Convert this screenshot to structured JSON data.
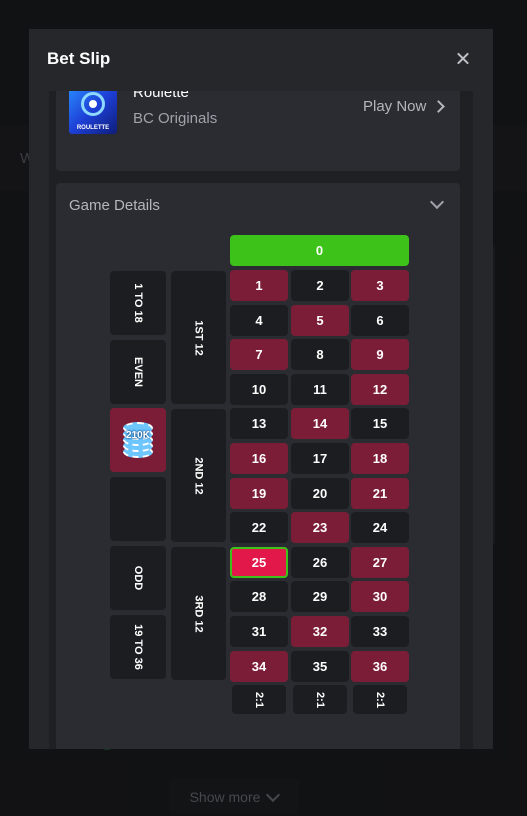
{
  "background": {
    "show_more_label": "Show more",
    "partial_letter": "W"
  },
  "modal": {
    "title": "Bet Slip",
    "game": {
      "name": "Roulette",
      "provider": "BC Originals",
      "thumb_label": "ROULETTE",
      "play_label": "Play Now"
    },
    "details_title": "Game Details"
  },
  "board": {
    "zero": "0",
    "rows": [
      [
        {
          "n": "1",
          "c": "red"
        },
        {
          "n": "2",
          "c": "black"
        },
        {
          "n": "3",
          "c": "red"
        }
      ],
      [
        {
          "n": "4",
          "c": "black"
        },
        {
          "n": "5",
          "c": "red"
        },
        {
          "n": "6",
          "c": "black"
        }
      ],
      [
        {
          "n": "7",
          "c": "red"
        },
        {
          "n": "8",
          "c": "black"
        },
        {
          "n": "9",
          "c": "red"
        }
      ],
      [
        {
          "n": "10",
          "c": "black"
        },
        {
          "n": "11",
          "c": "black"
        },
        {
          "n": "12",
          "c": "red"
        }
      ],
      [
        {
          "n": "13",
          "c": "black"
        },
        {
          "n": "14",
          "c": "red"
        },
        {
          "n": "15",
          "c": "black"
        }
      ],
      [
        {
          "n": "16",
          "c": "red"
        },
        {
          "n": "17",
          "c": "black"
        },
        {
          "n": "18",
          "c": "red"
        }
      ],
      [
        {
          "n": "19",
          "c": "red"
        },
        {
          "n": "20",
          "c": "black"
        },
        {
          "n": "21",
          "c": "red"
        }
      ],
      [
        {
          "n": "22",
          "c": "black"
        },
        {
          "n": "23",
          "c": "red"
        },
        {
          "n": "24",
          "c": "black"
        }
      ],
      [
        {
          "n": "25",
          "c": "selected"
        },
        {
          "n": "26",
          "c": "black"
        },
        {
          "n": "27",
          "c": "red"
        }
      ],
      [
        {
          "n": "28",
          "c": "black"
        },
        {
          "n": "29",
          "c": "black"
        },
        {
          "n": "30",
          "c": "red"
        }
      ],
      [
        {
          "n": "31",
          "c": "black"
        },
        {
          "n": "32",
          "c": "red"
        },
        {
          "n": "33",
          "c": "black"
        }
      ],
      [
        {
          "n": "34",
          "c": "red"
        },
        {
          "n": "35",
          "c": "black"
        },
        {
          "n": "36",
          "c": "red"
        }
      ]
    ],
    "column_bets": [
      "2:1",
      "2:1",
      "2:1"
    ],
    "dozens": [
      "1ST 12",
      "2ND 12",
      "3RD 12"
    ],
    "outside": [
      "1 TO 18",
      "EVEN",
      "",
      "",
      "ODD",
      "19 TO 36"
    ],
    "selected_outside_index": 2,
    "chip_label": "210K",
    "colors": {
      "red": "#7c1d38",
      "black": "#1c1d20",
      "zero": "#3cc219",
      "selected": "#e2184a"
    }
  }
}
